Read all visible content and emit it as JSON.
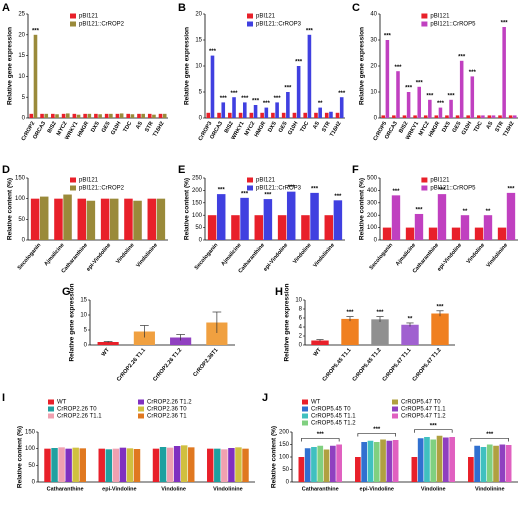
{
  "chart_data": [
    {
      "type": "bar",
      "panel": "A",
      "y_label": "Relative gene expression",
      "legend": "upper center",
      "categories": [
        "CrROP2",
        "ORCA3",
        "BIS2",
        "MYC2",
        "WRKY1",
        "HMGR",
        "DXS",
        "GES",
        "G10H",
        "TDC",
        "AS",
        "STR",
        "T16H2"
      ],
      "ylim": [
        0,
        25
      ],
      "yticks": [
        0,
        5,
        10,
        15,
        20,
        25
      ],
      "series": [
        {
          "name": "pBI121",
          "color": "#e8202a",
          "values": [
            1,
            1,
            1,
            1,
            1,
            1,
            1,
            1,
            1,
            1,
            1,
            1,
            1
          ]
        },
        {
          "name": "pBI121::CrROP2",
          "color": "#9a8a3a",
          "values": [
            20,
            1,
            0.9,
            1.1,
            0.8,
            1,
            0.9,
            1,
            1.1,
            0.9,
            1,
            0.8,
            1
          ],
          "significance": [
            "***",
            null,
            null,
            null,
            null,
            null,
            null,
            null,
            null,
            null,
            null,
            null,
            null
          ]
        }
      ]
    },
    {
      "type": "bar",
      "panel": "B",
      "y_label": "Relative gene expression",
      "legend": "upper center",
      "categories": [
        "CrROP3",
        "ORCA3",
        "BIS2",
        "WRKY1",
        "MYC2",
        "HMGR",
        "DXS",
        "GES",
        "G10H",
        "TDC",
        "AS",
        "STR",
        "T16H2"
      ],
      "ylim": [
        0,
        20
      ],
      "yticks": [
        0,
        5,
        10,
        15,
        20
      ],
      "series": [
        {
          "name": "pBI121",
          "color": "#e8202a",
          "values": [
            1,
            1,
            1,
            1,
            1,
            1,
            1,
            1,
            1,
            1,
            1,
            1,
            1
          ]
        },
        {
          "name": "pBI121::CrROP3",
          "color": "#4040e0",
          "values": [
            12,
            3,
            4,
            3,
            2.5,
            2,
            3,
            5,
            10,
            16,
            2,
            1.2,
            4
          ],
          "significance": [
            "***",
            "***",
            "***",
            "***",
            "***",
            "***",
            "***",
            "***",
            "***",
            "***",
            "**",
            null,
            "***"
          ]
        }
      ]
    },
    {
      "type": "bar",
      "panel": "C",
      "y_label": "Relative gene expression",
      "legend": "upper center",
      "categories": [
        "CrROP5",
        "ORCA3",
        "BIS2",
        "WRKY1",
        "MYC2",
        "HMGR",
        "DXS",
        "GES",
        "G10H",
        "TDC",
        "AS",
        "STR",
        "T16H2"
      ],
      "ylim": [
        0,
        40
      ],
      "yticks": [
        0,
        10,
        20,
        30,
        40
      ],
      "series": [
        {
          "name": "pBI121",
          "color": "#e8202a",
          "values": [
            1,
            1,
            1,
            1,
            1,
            1,
            1,
            1,
            1,
            1,
            1,
            1,
            1
          ]
        },
        {
          "name": "pBI121::CrROP5",
          "color": "#c040c0",
          "values": [
            30,
            18,
            10,
            12,
            7,
            4,
            7,
            22,
            16,
            1,
            1,
            35,
            1
          ],
          "significance": [
            "***",
            "***",
            "***",
            "***",
            "***",
            "***",
            "***",
            "***",
            "***",
            null,
            null,
            "***",
            null
          ]
        }
      ]
    },
    {
      "type": "bar",
      "panel": "D",
      "y_label": "Relative content (%)",
      "legend": "upper center",
      "categories": [
        "Secologanin",
        "Ajmalicine",
        "Catharanthine",
        "epi-Vindoline",
        "Vindoline",
        "Vindolinine"
      ],
      "ylim": [
        0,
        150
      ],
      "yticks": [
        0,
        50,
        100,
        150
      ],
      "series": [
        {
          "name": "pBI121",
          "color": "#e8202a",
          "values": [
            100,
            100,
            100,
            100,
            100,
            100
          ]
        },
        {
          "name": "pBI121::CrROP2",
          "color": "#9a8a3a",
          "values": [
            105,
            110,
            95,
            100,
            95,
            100
          ]
        }
      ]
    },
    {
      "type": "bar",
      "panel": "E",
      "y_label": "Relative content (%)",
      "legend": "upper center",
      "categories": [
        "Secologanin",
        "Ajmalicine",
        "Catharanthine",
        "epi-Vindoline",
        "Vindoline",
        "Vindolinine"
      ],
      "ylim": [
        0,
        250
      ],
      "yticks": [
        0,
        50,
        100,
        150,
        200,
        250
      ],
      "series": [
        {
          "name": "pBI121",
          "color": "#e8202a",
          "values": [
            100,
            100,
            100,
            100,
            100,
            100
          ]
        },
        {
          "name": "pBI121::CrROP3",
          "color": "#4040e0",
          "values": [
            185,
            170,
            165,
            195,
            190,
            160
          ],
          "significance": [
            "***",
            "***",
            "***",
            "***",
            "***",
            "***"
          ]
        }
      ]
    },
    {
      "type": "bar",
      "panel": "F",
      "y_label": "Relative content (%)",
      "legend": "upper center",
      "categories": [
        "Secologanin",
        "Ajmalicine",
        "Catharanthine",
        "epi-Vindoline",
        "Vindoline",
        "Vindolinine"
      ],
      "ylim": [
        0,
        500
      ],
      "yticks": [
        0,
        100,
        200,
        300,
        400,
        500
      ],
      "series": [
        {
          "name": "pBI121",
          "color": "#e8202a",
          "values": [
            100,
            100,
            100,
            100,
            100,
            100
          ]
        },
        {
          "name": "pBI121::CrROP5",
          "color": "#c040c0",
          "values": [
            360,
            210,
            370,
            200,
            200,
            380
          ],
          "significance": [
            "***",
            "***",
            "***",
            "**",
            "**",
            "***"
          ]
        }
      ]
    },
    {
      "type": "bar",
      "panel": "G",
      "y_label": "Relative gene expression",
      "categories": [
        "WT",
        "CrROP2.26 T1.1",
        "CrROP2.26 T1.2",
        "CrROP2.36T1"
      ],
      "ylim": [
        0,
        15
      ],
      "yticks": [
        0,
        5,
        10,
        15
      ],
      "values": [
        1,
        4.5,
        2.5,
        7.5
      ],
      "errors": [
        0.2,
        2,
        1,
        3.5
      ],
      "colors": [
        "#e8202a",
        "#f0a040",
        "#9040c0",
        "#f0a040"
      ]
    },
    {
      "type": "bar",
      "panel": "H",
      "y_label": "Relative gene expression",
      "categories": [
        "WT",
        "CrROP5.45 T1.1",
        "CrROP5.45 T1.2",
        "CrROP5.47 T1.1",
        "CrROP5.47 T1.2"
      ],
      "ylim": [
        0,
        10
      ],
      "yticks": [
        0,
        2,
        4,
        6,
        8,
        10
      ],
      "values": [
        1,
        5.8,
        5.7,
        4.5,
        7
      ],
      "errors": [
        0.2,
        0.5,
        0.6,
        0.4,
        0.6
      ],
      "colors": [
        "#e8202a",
        "#f08020",
        "#909090",
        "#a060d0",
        "#f08020"
      ],
      "significance": [
        null,
        "***",
        "***",
        "**",
        "***"
      ]
    },
    {
      "type": "bar",
      "panel": "I",
      "y_label": "Relative content (%)",
      "legend": "top",
      "categories": [
        "Catharanthine",
        "epi-Vindoline",
        "Vindoline",
        "Vindolinine"
      ],
      "ylim": [
        0,
        150
      ],
      "yticks": [
        0,
        50,
        100,
        150
      ],
      "series": [
        {
          "name": "WT",
          "color": "#e8202a",
          "values": [
            100,
            100,
            100,
            100
          ]
        },
        {
          "name": "CrROP2.26 T0",
          "color": "#1fa0a0",
          "values": [
            102,
            98,
            105,
            100
          ]
        },
        {
          "name": "CrROP2.26 T1.1",
          "color": "#f0a0b0",
          "values": [
            104,
            100,
            103,
            98
          ]
        },
        {
          "name": "CrROP2.26 T1.2",
          "color": "#8030c0",
          "values": [
            100,
            103,
            108,
            102
          ]
        },
        {
          "name": "CrROP2.36 T0",
          "color": "#d0c040",
          "values": [
            103,
            101,
            110,
            104
          ]
        },
        {
          "name": "CrROP2.36 T1",
          "color": "#e07820",
          "values": [
            101,
            99,
            104,
            100
          ]
        }
      ]
    },
    {
      "type": "bar",
      "panel": "J",
      "y_label": "Relative content (%)",
      "legend": "top",
      "categories": [
        "Catharanthine",
        "epi-Vindoline",
        "Vindoline",
        "Vindolinine"
      ],
      "ylim": [
        0,
        200
      ],
      "yticks": [
        0,
        50,
        100,
        150,
        200
      ],
      "group_significance": [
        "***",
        "***",
        "***",
        "***"
      ],
      "series": [
        {
          "name": "WT",
          "color": "#e8202a",
          "values": [
            100,
            100,
            100,
            100
          ]
        },
        {
          "name": "CrROP5.45 T0",
          "color": "#3070d0",
          "values": [
            135,
            160,
            175,
            145
          ]
        },
        {
          "name": "CrROP5.45 T1.1",
          "color": "#40c0c0",
          "values": [
            140,
            165,
            180,
            140
          ]
        },
        {
          "name": "CrROP5.45 T1.2",
          "color": "#80d080",
          "values": [
            145,
            160,
            170,
            150
          ]
        },
        {
          "name": "CrROP5.47 T0",
          "color": "#b0a040",
          "values": [
            130,
            170,
            185,
            145
          ]
        },
        {
          "name": "CrROP5.47 T1.1",
          "color": "#9040c0",
          "values": [
            145,
            165,
            178,
            150
          ]
        },
        {
          "name": "CrROP5.47 T1.2",
          "color": "#e060c0",
          "values": [
            150,
            168,
            180,
            148
          ]
        }
      ]
    }
  ]
}
